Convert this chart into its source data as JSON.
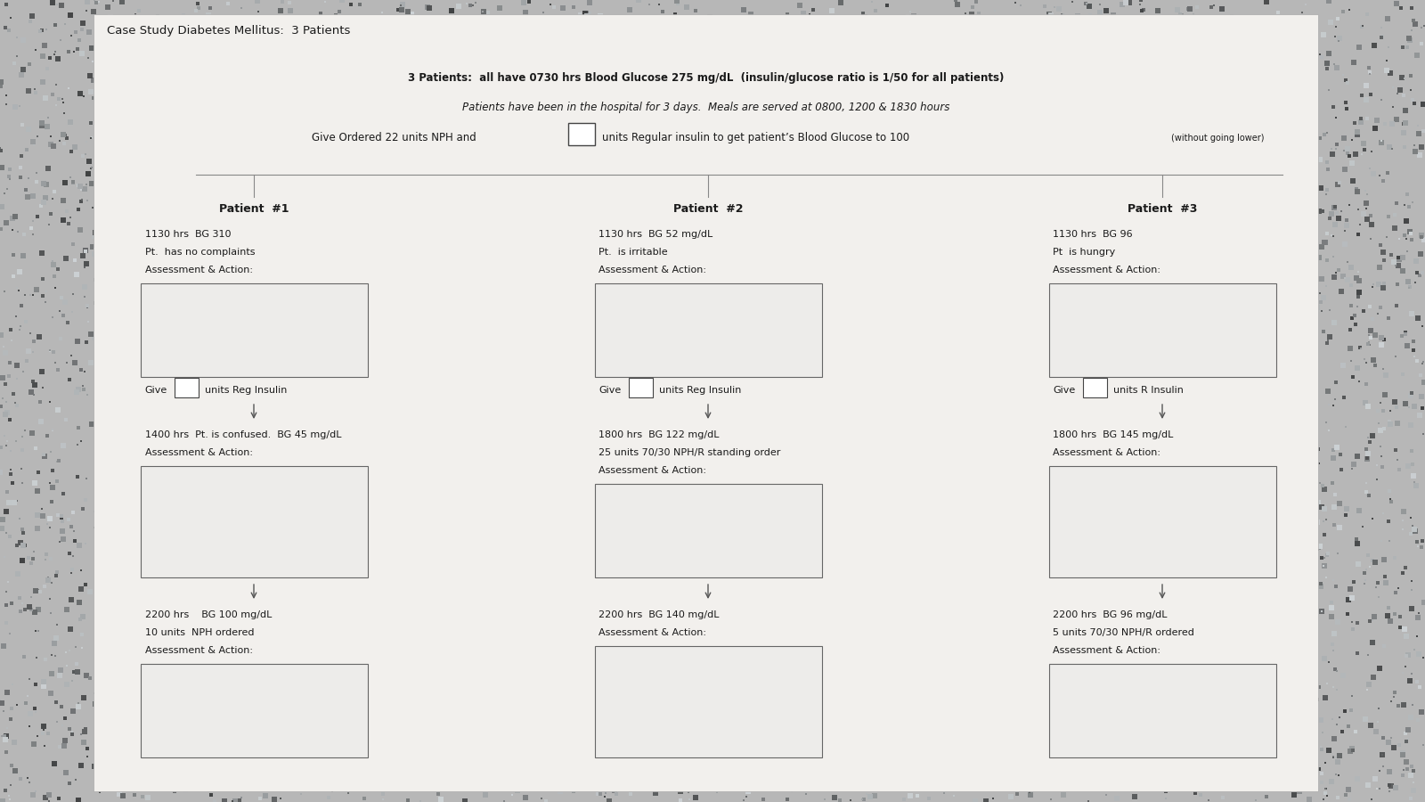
{
  "title": "Case Study Diabetes Mellitus:  3 Patients",
  "subtitle_line1": "3 Patients:  all have 0730 hrs Blood Glucose 275 mg/dL  (insulin/glucose ratio is 1/50 for all patients)",
  "subtitle_line2": "Patients have been in the hospital for 3 days.  Meals are served at 0800, 1200 & 1830 hours",
  "subtitle_line3_pre": "Give Ordered 22 units NPH and",
  "subtitle_line3_post": "units Regular insulin to get patient’s Blood Glucose to 100",
  "subtitle_line3_small": "(without going lower)",
  "bg_color": "#b8b5b0",
  "paper_color": "#f2f0ed",
  "box_facecolor": "#edecea",
  "box_edgecolor": "#666666",
  "text_color": "#1a1a1a",
  "line_color": "#888888",
  "patients": [
    {
      "header": "Patient  #1",
      "info1": "1130 hrs  BG 310",
      "info2": "Pt.  has no complaints",
      "info3": "Assessment & Action:",
      "give_label": "Give",
      "give_post": "units Reg Insulin",
      "mid_info1": "1400 hrs  Pt. is confused.  BG 45 mg/dL",
      "mid_info2": "",
      "mid_info3": "Assessment & Action:",
      "bot_info1": "2200 hrs    BG 100 mg/dL",
      "bot_info2": "10 units  NPH ordered",
      "bot_info3": "Assessment & Action:"
    },
    {
      "header": "Patient  #2",
      "info1": "1130 hrs  BG 52 mg/dL",
      "info2": "Pt.  is irritable",
      "info3": "Assessment & Action:",
      "give_label": "Give",
      "give_post": "units Reg Insulin",
      "mid_info1": "1800 hrs  BG 122 mg/dL",
      "mid_info2": "25 units 70/30 NPH/R standing order",
      "mid_info3": "Assessment & Action:",
      "bot_info1": "2200 hrs  BG 140 mg/dL",
      "bot_info2": "",
      "bot_info3": "Assessment & Action:"
    },
    {
      "header": "Patient  #3",
      "info1": "1130 hrs  BG 96",
      "info2": "Pt  is hungry",
      "info3": "Assessment & Action:",
      "give_label": "Give",
      "give_post": "units R Insulin",
      "mid_info1": "1800 hrs  BG 145 mg/dL",
      "mid_info2": "",
      "mid_info3": "Assessment & Action:",
      "bot_info1": "2200 hrs  BG 96 mg/dL",
      "bot_info2": "5 units 70/30 NPH/R ordered",
      "bot_info3": "Assessment & Action:"
    }
  ]
}
